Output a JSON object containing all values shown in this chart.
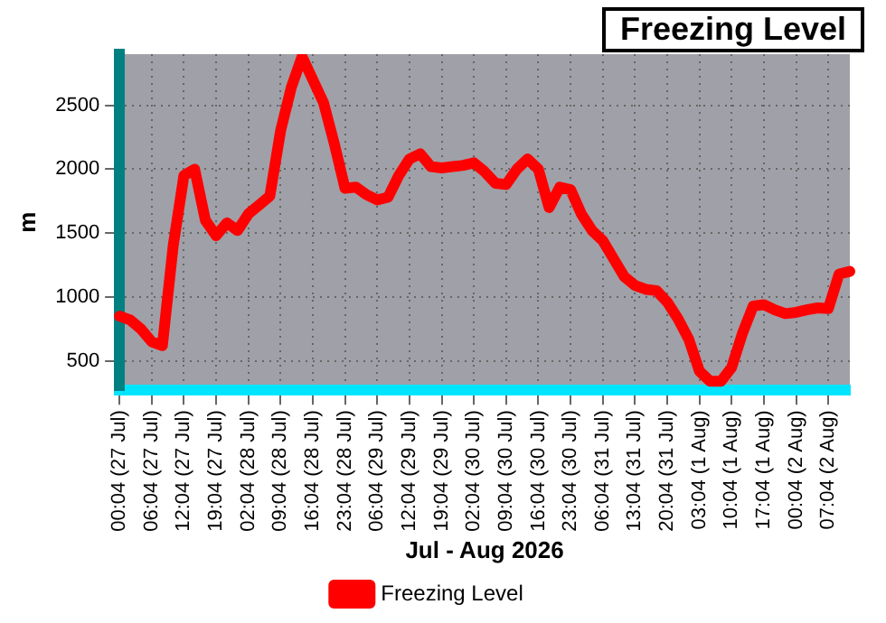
{
  "chart_data": {
    "type": "line",
    "title": "Freezing Level",
    "xlabel": "Jul - Aug 2026",
    "ylabel": "m",
    "categories": [
      "00:04 (27 Jul)",
      null,
      null,
      "06:04 (27 Jul)",
      null,
      null,
      "12:04 (27 Jul)",
      null,
      null,
      "19:04 (27 Jul)",
      null,
      null,
      "02:04 (28 Jul)",
      null,
      null,
      "09:04 (28 Jul)",
      null,
      null,
      "16:04 (28 Jul)",
      null,
      null,
      "23:04 (28 Jul)",
      null,
      null,
      "06:04 (29 Jul)",
      null,
      null,
      "12:04 (29 Jul)",
      null,
      null,
      "19:04 (29 Jul)",
      null,
      null,
      "02:04 (30 Jul)",
      null,
      null,
      "09:04 (30 Jul)",
      null,
      null,
      "16:04 (30 Jul)",
      null,
      null,
      "23:04 (30 Jul)",
      null,
      null,
      "06:04 (31 Jul)",
      null,
      null,
      "13:04 (31 Jul)",
      null,
      null,
      "20:04 (31 Jul)",
      null,
      null,
      "03:04 (1 Aug)",
      null,
      null,
      "10:04 (1 Aug)",
      null,
      null,
      "17:04 (1 Aug)",
      null,
      null,
      "00:04 (2 Aug)",
      null,
      null,
      "07:04 (2 Aug)",
      null,
      null
    ],
    "series": [
      {
        "name": "Freezing Level",
        "color": "#ff0000",
        "values": [
          850,
          820,
          750,
          650,
          620,
          1400,
          1950,
          2000,
          1600,
          1480,
          1580,
          1520,
          1650,
          1720,
          1790,
          2300,
          2640,
          2880,
          2700,
          2520,
          2200,
          1850,
          1860,
          1800,
          1760,
          1780,
          1950,
          2080,
          2120,
          2020,
          2010,
          2020,
          2030,
          2050,
          1980,
          1890,
          1880,
          2000,
          2080,
          2000,
          1700,
          1860,
          1840,
          1650,
          1520,
          1440,
          1300,
          1160,
          1090,
          1060,
          1050,
          960,
          830,
          670,
          420,
          340,
          340,
          450,
          715,
          930,
          940,
          900,
          870,
          880,
          900,
          915,
          910,
          1180,
          1200
        ]
      }
    ],
    "ylim": [
      270,
      2900
    ],
    "yticks": [
      500,
      1000,
      1500,
      2000,
      2500
    ],
    "grid": true,
    "legend": "bottom",
    "marker": "none",
    "line_style": "solid"
  }
}
